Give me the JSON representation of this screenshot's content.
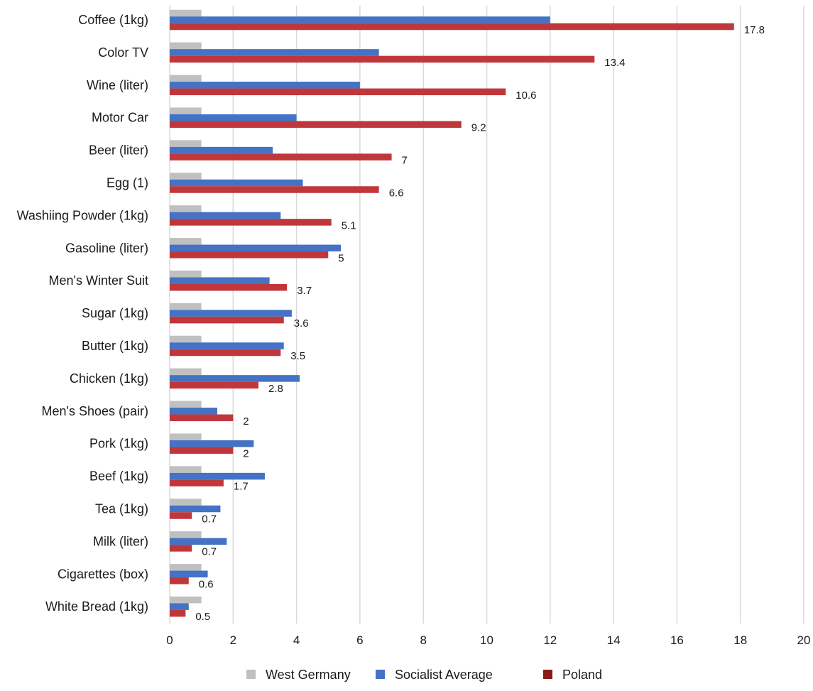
{
  "chart_data": {
    "type": "bar",
    "orientation": "horizontal",
    "categories": [
      "Coffee (1kg)",
      "Color TV",
      "Wine (liter)",
      "Motor Car",
      "Beer (liter)",
      "Egg (1)",
      "Washiing Powder (1kg)",
      "Gasoline (liter)",
      "Men's Winter Suit",
      "Sugar (1kg)",
      "Butter (1kg)",
      "Chicken (1kg)",
      "Men's Shoes (pair)",
      "Pork (1kg)",
      "Beef (1kg)",
      "Tea (1kg)",
      "Milk (liter)",
      "Cigarettes (box)",
      "White Bread (1kg)"
    ],
    "series": [
      {
        "name": "West Germany",
        "color": "#c0c0c0",
        "values": [
          1,
          1,
          1,
          1,
          1,
          1,
          1,
          1,
          1,
          1,
          1,
          1,
          1,
          1,
          1,
          1,
          1,
          1,
          1
        ]
      },
      {
        "name": "Socialist Average",
        "color": "#4472c4",
        "values": [
          12,
          6.6,
          6,
          4,
          3.25,
          4.2,
          3.5,
          5.4,
          3.15,
          3.85,
          3.6,
          4.1,
          1.5,
          2.65,
          3.0,
          1.6,
          1.8,
          1.2,
          0.6
        ]
      },
      {
        "name": "Poland",
        "color": "#c0373b",
        "values": [
          17.8,
          13.4,
          10.6,
          9.2,
          7,
          6.6,
          5.1,
          5,
          3.7,
          3.6,
          3.5,
          2.8,
          2,
          2,
          1.7,
          0.7,
          0.7,
          0.6,
          0.5
        ]
      }
    ],
    "data_labels": [
      "17.8",
      "13.4",
      "10.6",
      "9.2",
      "7",
      "6.6",
      "5.1",
      "5",
      "3.7",
      "3.6",
      "3.5",
      "2.8",
      "2",
      "2",
      "1.7",
      "0.7",
      "0.7",
      "0.6",
      "0.5"
    ],
    "xlim": [
      0,
      20
    ],
    "xticks": [
      "0",
      "2",
      "4",
      "6",
      "8",
      "10",
      "12",
      "14",
      "16",
      "18",
      "20"
    ],
    "grid": true,
    "legend": {
      "placement": "bottom",
      "items": [
        "West Germany",
        "Socialist Average",
        "Poland"
      ],
      "colors": [
        "#c0c0c0",
        "#4472c4",
        "#8b1a1a"
      ]
    }
  }
}
